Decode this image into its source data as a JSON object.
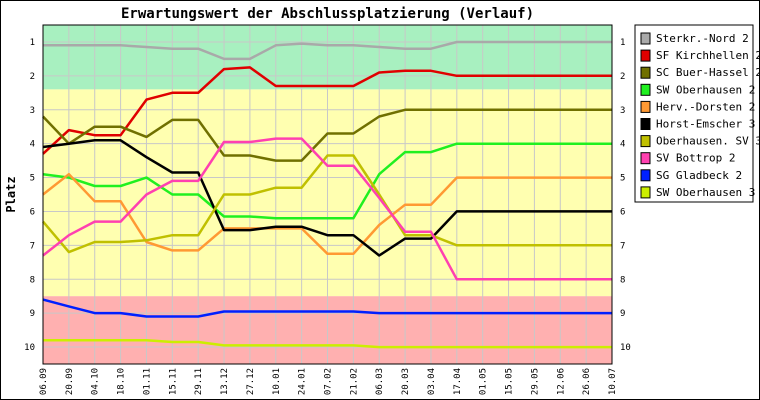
{
  "chart_data": {
    "type": "line",
    "title": "Erwartungswert der Abschlussplatzierung (Verlauf)",
    "ylabel": "Platz",
    "ylim": [
      0.5,
      10.5
    ],
    "y_inverted": true,
    "yticks": [
      "1",
      "2",
      "3",
      "4",
      "5",
      "6",
      "7",
      "8",
      "9",
      "10"
    ],
    "categories": [
      "06.09",
      "20.09",
      "04.10",
      "18.10",
      "01.11",
      "15.11",
      "29.11",
      "13.12",
      "27.12",
      "10.01",
      "24.01",
      "07.02",
      "21.02",
      "06.03",
      "20.03",
      "03.04",
      "17.04",
      "01.05",
      "15.05",
      "29.05",
      "12.06",
      "26.06",
      "10.07"
    ],
    "grid": true,
    "legend_position": "right",
    "bands": [
      {
        "name": "aufstieg",
        "color": "#a8f0c0",
        "range": [
          0.5,
          2.4
        ]
      },
      {
        "name": "mitte",
        "color": "#ffffb0",
        "range": [
          2.4,
          8.5
        ]
      },
      {
        "name": "abstieg",
        "color": "#ffb0b0",
        "range": [
          8.5,
          10.5
        ]
      }
    ],
    "series": [
      {
        "name": "Sterkr.-Nord 2",
        "color": "#a9a9a9",
        "values": [
          1.1,
          1.1,
          1.1,
          1.1,
          1.15,
          1.2,
          1.2,
          1.5,
          1.5,
          1.1,
          1.05,
          1.1,
          1.1,
          1.15,
          1.2,
          1.2,
          1.0,
          1.0,
          1.0,
          1.0,
          1.0,
          1.0,
          1.0
        ]
      },
      {
        "name": "SF Kirchhellen 2",
        "color": "#e00000",
        "values": [
          4.3,
          3.6,
          3.75,
          3.75,
          2.7,
          2.5,
          2.5,
          1.8,
          1.75,
          2.3,
          2.3,
          2.3,
          2.3,
          1.9,
          1.85,
          1.85,
          2.0,
          2.0,
          2.0,
          2.0,
          2.0,
          2.0,
          2.0
        ]
      },
      {
        "name": "SC Buer-Hassel 2",
        "color": "#707000",
        "values": [
          3.2,
          4.0,
          3.5,
          3.5,
          3.8,
          3.3,
          3.3,
          4.35,
          4.35,
          4.5,
          4.5,
          3.7,
          3.7,
          3.2,
          3.0,
          3.0,
          3.0,
          3.0,
          3.0,
          3.0,
          3.0,
          3.0,
          3.0
        ]
      },
      {
        "name": "SW Oberhausen 2",
        "color": "#20f020",
        "values": [
          4.9,
          5.0,
          5.25,
          5.25,
          5.0,
          5.5,
          5.5,
          6.15,
          6.15,
          6.2,
          6.2,
          6.2,
          6.2,
          4.9,
          4.25,
          4.25,
          4.0,
          4.0,
          4.0,
          4.0,
          4.0,
          4.0,
          4.0
        ]
      },
      {
        "name": "Herv.-Dorsten 2",
        "color": "#ff9933",
        "values": [
          5.5,
          4.9,
          5.7,
          5.7,
          6.9,
          7.15,
          7.15,
          6.5,
          6.5,
          6.5,
          6.5,
          7.25,
          7.25,
          6.4,
          5.8,
          5.8,
          5.0,
          5.0,
          5.0,
          5.0,
          5.0,
          5.0,
          5.0
        ]
      },
      {
        "name": "Horst-Emscher 3",
        "color": "#000000",
        "values": [
          4.1,
          4.0,
          3.9,
          3.9,
          4.4,
          4.85,
          4.85,
          6.55,
          6.55,
          6.45,
          6.45,
          6.7,
          6.7,
          7.3,
          6.8,
          6.8,
          6.0,
          6.0,
          6.0,
          6.0,
          6.0,
          6.0,
          6.0
        ]
      },
      {
        "name": "Oberhausen. SV 3",
        "color": "#c0c000",
        "values": [
          6.3,
          7.2,
          6.9,
          6.9,
          6.85,
          6.7,
          6.7,
          5.5,
          5.5,
          5.3,
          5.3,
          4.35,
          4.35,
          5.5,
          6.7,
          6.7,
          7.0,
          7.0,
          7.0,
          7.0,
          7.0,
          7.0,
          7.0
        ]
      },
      {
        "name": "SV Bottrop 2",
        "color": "#ff40b0",
        "values": [
          7.3,
          6.7,
          6.3,
          6.3,
          5.5,
          5.1,
          5.1,
          3.95,
          3.95,
          3.85,
          3.85,
          4.65,
          4.65,
          5.6,
          6.6,
          6.6,
          8.0,
          8.0,
          8.0,
          8.0,
          8.0,
          8.0,
          8.0
        ]
      },
      {
        "name": "SG Gladbeck 2",
        "color": "#0020ff",
        "values": [
          8.6,
          8.8,
          9.0,
          9.0,
          9.1,
          9.1,
          9.1,
          8.95,
          8.95,
          8.95,
          8.95,
          8.95,
          8.95,
          9.0,
          9.0,
          9.0,
          9.0,
          9.0,
          9.0,
          9.0,
          9.0,
          9.0,
          9.0
        ]
      },
      {
        "name": "SW Oberhausen 3",
        "color": "#ccee00",
        "values": [
          9.8,
          9.8,
          9.8,
          9.8,
          9.8,
          9.85,
          9.85,
          9.95,
          9.95,
          9.95,
          9.95,
          9.95,
          9.95,
          10.0,
          10.0,
          10.0,
          10.0,
          10.0,
          10.0,
          10.0,
          10.0,
          10.0,
          10.0
        ]
      }
    ]
  }
}
